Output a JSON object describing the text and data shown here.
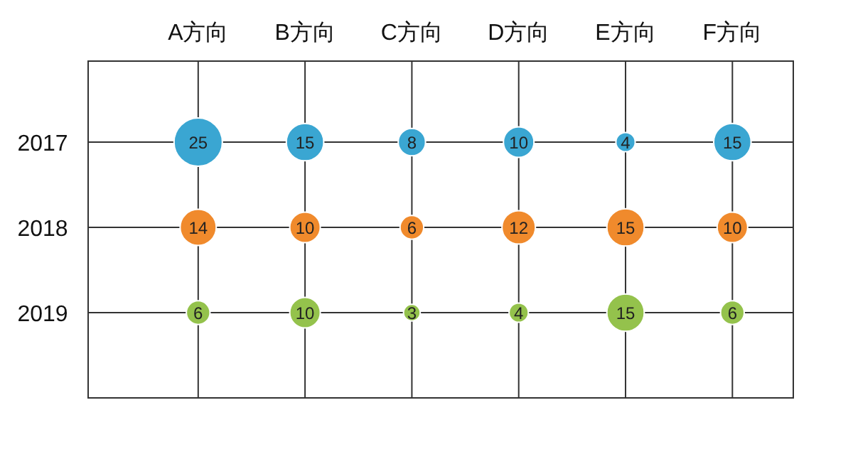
{
  "chart_data": {
    "type": "bubble",
    "categories": [
      "A方向",
      "B方向",
      "C方向",
      "D方向",
      "E方向",
      "F方向"
    ],
    "ylim": [
      2020,
      2016.05
    ],
    "yticks": [
      2017,
      2018,
      2019
    ],
    "grid": true,
    "series": [
      {
        "color": "#3aa6d2",
        "values": [
          2017,
          2017,
          2017,
          2017,
          2017,
          2017
        ],
        "sizes": [
          25,
          15,
          8,
          10,
          4,
          15
        ],
        "value_labels": [
          "25",
          "15",
          "8",
          "10",
          "4",
          "15"
        ]
      },
      {
        "color": "#f08a2c",
        "values": [
          2018,
          2018,
          2018,
          2018,
          2018,
          2018
        ],
        "sizes": [
          14,
          10,
          6,
          12,
          15,
          10
        ],
        "value_labels": [
          "14",
          "10",
          "6",
          "12",
          "15",
          "10"
        ]
      },
      {
        "color": "#94c24c",
        "values": [
          2019,
          2019,
          2019,
          2019,
          2019,
          2019
        ],
        "sizes": [
          6,
          10,
          3,
          4,
          15,
          6
        ],
        "value_labels": [
          "6",
          "10",
          "3",
          "4",
          "15",
          "6"
        ]
      }
    ]
  }
}
